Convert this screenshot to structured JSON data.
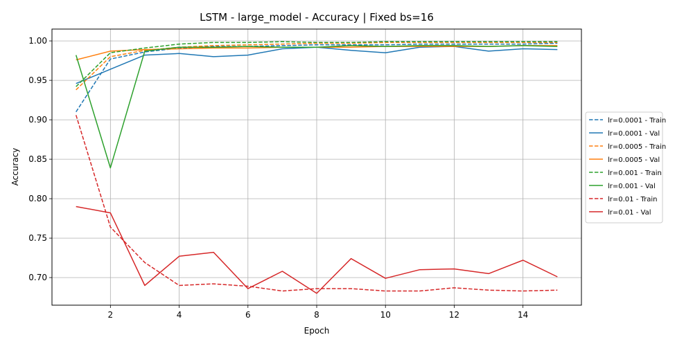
{
  "chart_data": {
    "type": "line",
    "title": "LSTM - large_model - Accuracy | Fixed bs=16",
    "xlabel": "Epoch",
    "ylabel": "Accuracy",
    "xlim": [
      0.3,
      15.7
    ],
    "ylim": [
      0.665,
      1.015
    ],
    "xticks": [
      2,
      4,
      6,
      8,
      10,
      12,
      14
    ],
    "yticks": [
      0.7,
      0.75,
      0.8,
      0.85,
      0.9,
      0.95,
      1.0
    ],
    "grid": true,
    "legend_position": "center-right outside",
    "x": [
      1,
      2,
      3,
      4,
      5,
      6,
      7,
      8,
      9,
      10,
      11,
      12,
      13,
      14,
      15
    ],
    "series": [
      {
        "name": "lr=0.0001 - Train",
        "color": "#1f77b4",
        "dash": true,
        "values": [
          0.91,
          0.977,
          0.986,
          0.991,
          0.993,
          0.993,
          0.994,
          0.995,
          0.995,
          0.995,
          0.996,
          0.996,
          0.996,
          0.996,
          0.997
        ]
      },
      {
        "name": "lr=0.0001 - Val",
        "color": "#1f77b4",
        "dash": false,
        "values": [
          0.946,
          0.964,
          0.982,
          0.984,
          0.98,
          0.982,
          0.99,
          0.992,
          0.988,
          0.985,
          0.992,
          0.993,
          0.987,
          0.99,
          0.989
        ]
      },
      {
        "name": "lr=0.0005 - Train",
        "color": "#ff7f0e",
        "dash": true,
        "values": [
          0.938,
          0.98,
          0.988,
          0.992,
          0.994,
          0.995,
          0.996,
          0.997,
          0.997,
          0.998,
          0.998,
          0.998,
          0.998,
          0.998,
          0.998
        ]
      },
      {
        "name": "lr=0.0005 - Val",
        "color": "#ff7f0e",
        "dash": false,
        "values": [
          0.976,
          0.987,
          0.989,
          0.99,
          0.991,
          0.991,
          0.992,
          0.992,
          0.992,
          0.993,
          0.993,
          0.993,
          0.993,
          0.994,
          0.994
        ]
      },
      {
        "name": "lr=0.001 - Train",
        "color": "#2ca02c",
        "dash": true,
        "values": [
          0.942,
          0.985,
          0.991,
          0.996,
          0.998,
          0.998,
          0.999,
          0.998,
          0.998,
          0.999,
          0.999,
          0.999,
          0.999,
          0.999,
          0.999
        ]
      },
      {
        "name": "lr=0.001 - Val",
        "color": "#2ca02c",
        "dash": false,
        "values": [
          0.982,
          0.839,
          0.987,
          0.992,
          0.992,
          0.993,
          0.992,
          0.992,
          0.994,
          0.993,
          0.994,
          0.994,
          0.993,
          0.994,
          0.993
        ]
      },
      {
        "name": "lr=0.01 - Train",
        "color": "#d62728",
        "dash": true,
        "values": [
          0.906,
          0.764,
          0.719,
          0.69,
          0.692,
          0.689,
          0.683,
          0.686,
          0.686,
          0.683,
          0.683,
          0.687,
          0.684,
          0.683,
          0.684
        ]
      },
      {
        "name": "lr=0.01 - Val",
        "color": "#d62728",
        "dash": false,
        "values": [
          0.79,
          0.782,
          0.69,
          0.727,
          0.732,
          0.686,
          0.708,
          0.68,
          0.724,
          0.699,
          0.71,
          0.711,
          0.705,
          0.722,
          0.701
        ]
      }
    ]
  }
}
